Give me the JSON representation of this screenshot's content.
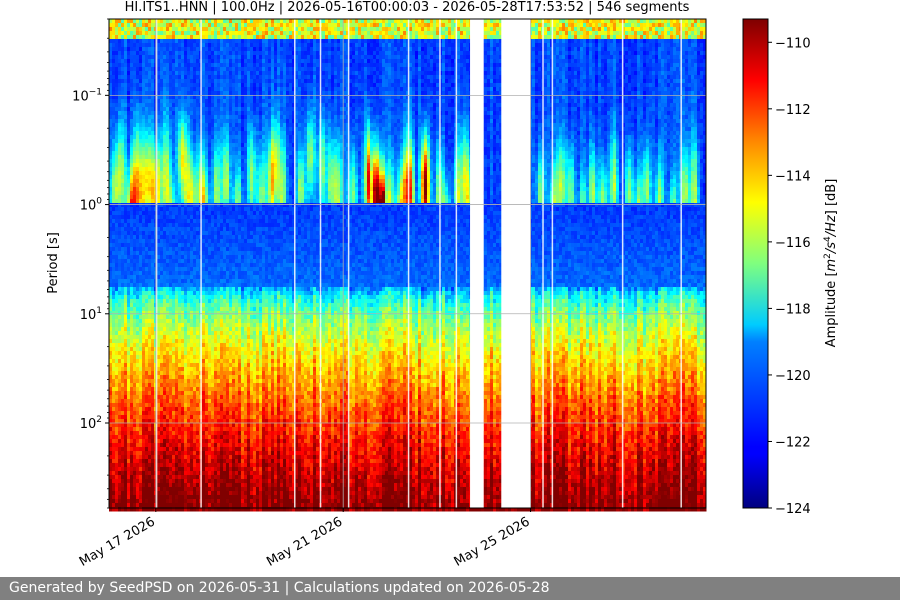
{
  "chart_data": {
    "type": "heatmap",
    "title": "HI.ITS1..HNN | 100.0Hz | 2026-05-16T00:00:03 - 2026-05-28T17:53:52 | 546 segments",
    "ylabel": "Period [s]",
    "y_scale": "log",
    "y_ticks": [
      {
        "value": 0.1,
        "base": "10",
        "exp": "−1"
      },
      {
        "value": 1,
        "base": "10",
        "exp": "0"
      },
      {
        "value": 10,
        "base": "10",
        "exp": "1"
      },
      {
        "value": 100,
        "base": "10",
        "exp": "2"
      }
    ],
    "ylim": [
      600,
      0.02
    ],
    "xlim": [
      "2026-05-16T00:00:03",
      "2026-05-28T17:53:52"
    ],
    "x_ticks": [
      {
        "date": "2026-05-17",
        "label": "May 17 2026"
      },
      {
        "date": "2026-05-21",
        "label": "May 21 2026"
      },
      {
        "date": "2026-05-25",
        "label": "May 25 2026"
      }
    ],
    "data_gaps": [
      {
        "start": "2026-05-23T17:00:00",
        "end": "2026-05-24T00:00:00"
      },
      {
        "start": "2026-05-24T09:00:00",
        "end": "2026-05-25T00:00:00"
      }
    ],
    "grid": true,
    "colormap": "jet",
    "colorbar": {
      "label": "Amplitude [m²/s⁴/Hz] [dB]",
      "label_prefix": "Amplitude [",
      "label_unit_m": "m",
      "label_unit_m_exp": "2",
      "label_unit_s": "/s",
      "label_unit_s_exp": "4",
      "label_unit_hz": "/Hz",
      "label_suffix": "] [dB]",
      "min": -124,
      "max": -109.3,
      "ticks": [
        -110,
        -112,
        -114,
        -116,
        -118,
        -120,
        -122,
        -124
      ]
    }
  },
  "footer": {
    "text": "Generated by SeedPSD on 2026-05-31 | Calculations updated on 2026-05-28"
  }
}
